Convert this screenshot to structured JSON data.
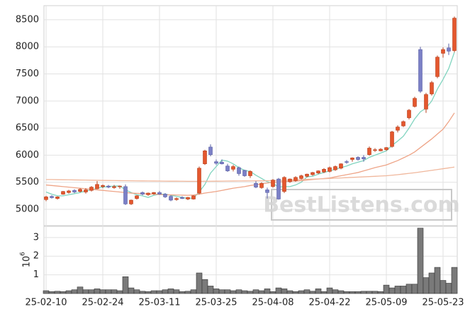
{
  "chart_data": [
    {
      "type": "candlestick",
      "categories": [
        "25-02-10",
        null,
        null,
        null,
        null,
        null,
        null,
        null,
        null,
        null,
        "25-02-24",
        null,
        null,
        null,
        null,
        null,
        null,
        null,
        null,
        null,
        "25-03-11",
        null,
        null,
        null,
        null,
        null,
        null,
        null,
        null,
        null,
        "25-03-25",
        null,
        null,
        null,
        null,
        null,
        null,
        null,
        null,
        null,
        "25-04-08",
        null,
        null,
        null,
        null,
        null,
        null,
        null,
        null,
        null,
        "25-04-22",
        null,
        null,
        null,
        null,
        null,
        null,
        null,
        null,
        null,
        "25-05-09",
        null,
        null,
        null,
        null,
        null,
        null,
        null,
        null,
        null,
        "25-05-23",
        null,
        null
      ],
      "open": [
        5180,
        5240,
        5200,
        5280,
        5310,
        5350,
        5330,
        5320,
        5350,
        5380,
        5420,
        5430,
        5400,
        5420,
        5420,
        5100,
        5200,
        5310,
        5270,
        5290,
        5310,
        5280,
        5240,
        5180,
        5220,
        5190,
        5190,
        5300,
        5840,
        6150,
        5880,
        5870,
        5800,
        5740,
        5770,
        5720,
        5620,
        5480,
        5400,
        5360,
        5420,
        5560,
        5330,
        5510,
        5530,
        5570,
        5610,
        5640,
        5670,
        5690,
        5700,
        5730,
        5760,
        5880,
        5920,
        5960,
        5960,
        6010,
        6090,
        6080,
        6100,
        6160,
        6460,
        6540,
        6690,
        6900,
        7950,
        6850,
        7130,
        7450,
        7880,
        7980,
        7930
      ],
      "high": [
        5250,
        5260,
        5240,
        5340,
        5360,
        5370,
        5390,
        5390,
        5430,
        5520,
        5460,
        5450,
        5450,
        5440,
        5460,
        5180,
        5260,
        5330,
        5310,
        5320,
        5340,
        5300,
        5260,
        5220,
        5240,
        5230,
        5260,
        5790,
        6100,
        6200,
        5920,
        5920,
        5840,
        5820,
        5790,
        5730,
        5720,
        5520,
        5500,
        5400,
        5560,
        5580,
        5610,
        5570,
        5610,
        5640,
        5660,
        5690,
        5720,
        5760,
        5790,
        5810,
        5850,
        5910,
        5960,
        5980,
        6000,
        6160,
        6130,
        6130,
        6150,
        6450,
        6550,
        6640,
        6850,
        7080,
        8000,
        7150,
        7370,
        7840,
        7990,
        8060,
        8560
      ],
      "low": [
        5150,
        5200,
        5180,
        5270,
        5290,
        5300,
        5310,
        5290,
        5330,
        5370,
        5390,
        5390,
        5380,
        5380,
        5080,
        5080,
        5180,
        5260,
        5250,
        5270,
        5270,
        5210,
        5150,
        5160,
        5190,
        5170,
        5180,
        5280,
        5820,
        5980,
        5820,
        5830,
        5690,
        5700,
        5620,
        5600,
        5580,
        5390,
        5380,
        5200,
        5400,
        5180,
        5300,
        5490,
        5510,
        5550,
        5590,
        5620,
        5650,
        5670,
        5680,
        5710,
        5740,
        5840,
        5880,
        5900,
        5880,
        5990,
        6060,
        6070,
        6080,
        6140,
        6420,
        6520,
        6660,
        6880,
        7150,
        6780,
        7100,
        7420,
        7800,
        7850,
        7900
      ],
      "close": [
        5230,
        5215,
        5230,
        5330,
        5340,
        5320,
        5370,
        5360,
        5410,
        5460,
        5440,
        5410,
        5420,
        5430,
        5100,
        5170,
        5250,
        5280,
        5300,
        5310,
        5280,
        5230,
        5170,
        5200,
        5200,
        5220,
        5250,
        5760,
        6080,
        6010,
        5850,
        5840,
        5710,
        5790,
        5660,
        5620,
        5700,
        5410,
        5480,
        5310,
        5540,
        5190,
        5590,
        5560,
        5590,
        5620,
        5650,
        5680,
        5710,
        5740,
        5770,
        5790,
        5840,
        5870,
        5950,
        5920,
        5930,
        6130,
        6100,
        6110,
        6140,
        6430,
        6520,
        6620,
        6830,
        7050,
        7180,
        7120,
        7340,
        7810,
        7950,
        7920,
        8530
      ],
      "up_color": "#e4572e",
      "down_color": "#7b80c6",
      "overlays": [
        {
          "color": "#80d4bf",
          "values": [
            5320,
            5280,
            5250,
            5250,
            5270,
            5290,
            5310,
            5340,
            5360,
            5390,
            5410,
            5420,
            5430,
            5430,
            5360,
            5310,
            5270,
            5250,
            5220,
            5260,
            5280,
            5280,
            5260,
            5240,
            5220,
            5200,
            5210,
            5320,
            5460,
            5670,
            5790,
            5910,
            5890,
            5840,
            5770,
            5720,
            5700,
            5630,
            5570,
            5510,
            5480,
            5410,
            5420,
            5420,
            5450,
            5500,
            5600,
            5610,
            5650,
            5680,
            5710,
            5740,
            5770,
            5800,
            5840,
            5870,
            5900,
            5960,
            6000,
            6040,
            6080,
            6180,
            6260,
            6350,
            6500,
            6670,
            6800,
            6870,
            7000,
            7220,
            7400,
            7600,
            7900
          ]
        },
        {
          "color": "#eea487",
          "values": [
            5450,
            5440,
            5430,
            5420,
            5410,
            5400,
            5390,
            5380,
            5370,
            5360,
            5350,
            5340,
            5330,
            5320,
            5310,
            5300,
            5295,
            5290,
            5285,
            5280,
            5275,
            5270,
            5268,
            5265,
            5262,
            5260,
            5265,
            5280,
            5300,
            5315,
            5330,
            5350,
            5370,
            5390,
            5405,
            5420,
            5440,
            5455,
            5470,
            5485,
            5500,
            5505,
            5510,
            5520,
            5525,
            5530,
            5540,
            5550,
            5560,
            5570,
            5580,
            5600,
            5620,
            5640,
            5660,
            5680,
            5710,
            5740,
            5770,
            5795,
            5820,
            5860,
            5900,
            5950,
            6000,
            6060,
            6140,
            6220,
            6300,
            6390,
            6480,
            6620,
            6780
          ]
        },
        {
          "color": "#f0b79c",
          "values": [
            5550,
            5550,
            5548,
            5546,
            5545,
            5543,
            5541,
            5540,
            5538,
            5536,
            5535,
            5533,
            5532,
            5530,
            5529,
            5527,
            5526,
            5525,
            5524,
            5523,
            5522,
            5521,
            5520,
            5520,
            5519,
            5518,
            5518,
            5518,
            5519,
            5519,
            5520,
            5521,
            5522,
            5523,
            5524,
            5525,
            5526,
            5527,
            5528,
            5529,
            5530,
            5534,
            5538,
            5542,
            5546,
            5550,
            5554,
            5558,
            5562,
            5566,
            5570,
            5575,
            5580,
            5585,
            5590,
            5595,
            5600,
            5605,
            5610,
            5615,
            5620,
            5630,
            5640,
            5652,
            5664,
            5676,
            5690,
            5705,
            5720,
            5735,
            5750,
            5765,
            5780
          ]
        }
      ],
      "ylim": [
        4700,
        8760
      ],
      "yticks": [
        5000,
        5500,
        6000,
        6500,
        7000,
        7500,
        8000,
        8500
      ],
      "grid": true,
      "watermark": "BestListens.com"
    },
    {
      "type": "bar",
      "values": [
        0.15,
        0.1,
        0.12,
        0.1,
        0.15,
        0.2,
        0.35,
        0.2,
        0.2,
        0.25,
        0.2,
        0.2,
        0.2,
        0.15,
        0.9,
        0.3,
        0.2,
        0.12,
        0.1,
        0.15,
        0.15,
        0.2,
        0.25,
        0.2,
        0.1,
        0.12,
        0.2,
        1.1,
        0.75,
        0.4,
        0.25,
        0.2,
        0.2,
        0.15,
        0.2,
        0.15,
        0.12,
        0.2,
        0.15,
        0.25,
        0.1,
        0.3,
        0.25,
        0.15,
        0.1,
        0.15,
        0.2,
        0.12,
        0.25,
        0.1,
        0.3,
        0.2,
        0.15,
        0.1,
        0.1,
        0.1,
        0.12,
        0.12,
        0.12,
        0.1,
        0.45,
        0.3,
        0.4,
        0.4,
        0.5,
        0.5,
        3.5,
        0.85,
        1.1,
        1.4,
        0.7,
        0.55,
        1.4
      ],
      "color": "#7a7a7a",
      "ylim": [
        0,
        3.6
      ],
      "yticks": [
        1,
        2,
        3
      ],
      "grid": true,
      "scale_label": {
        "base": "10",
        "exponent": "6"
      }
    }
  ]
}
